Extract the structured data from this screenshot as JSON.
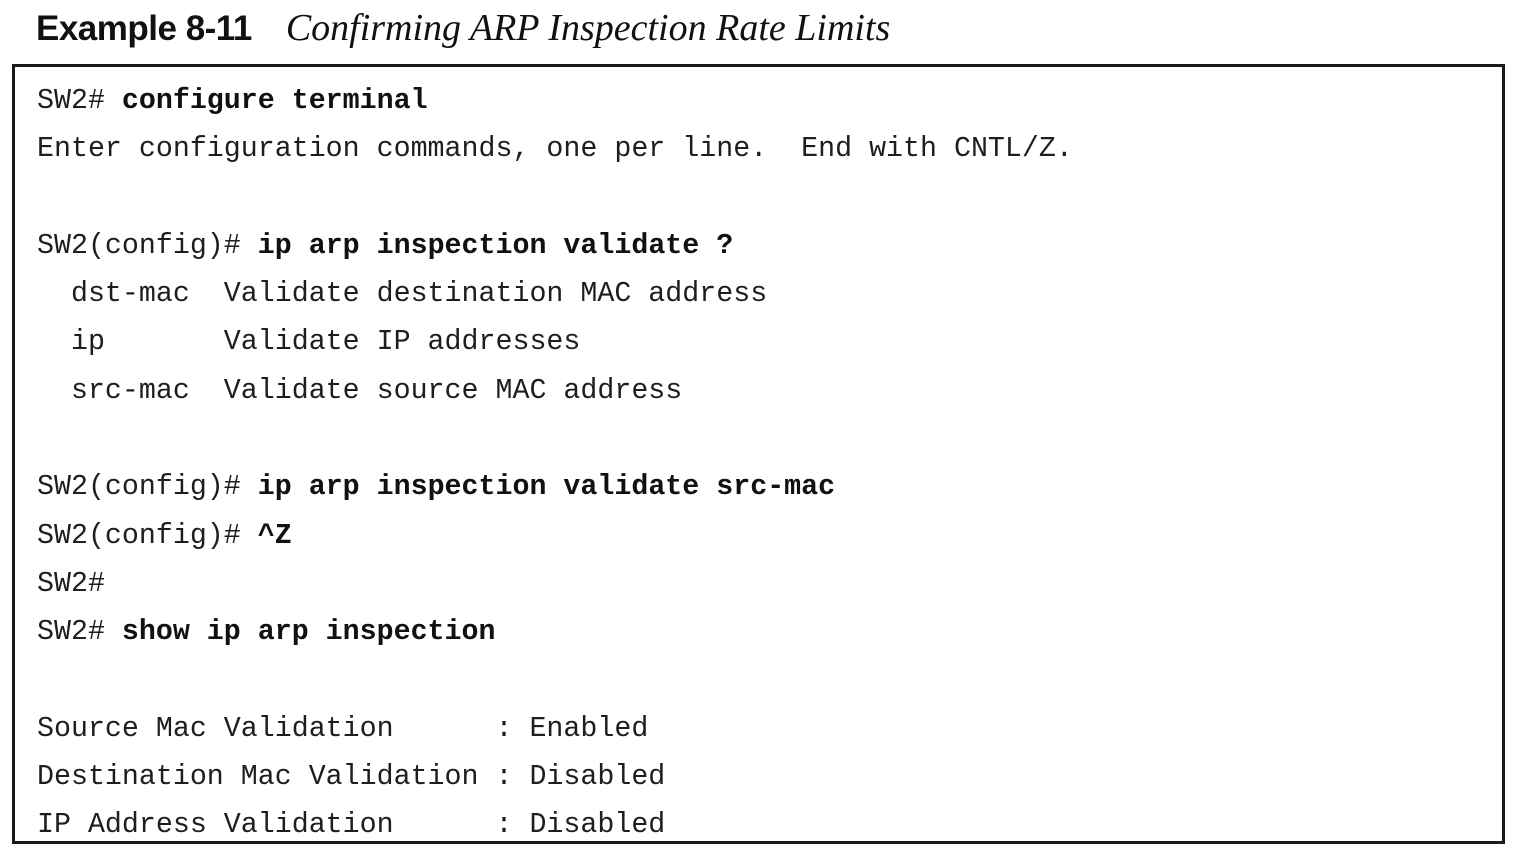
{
  "caption": {
    "example_number": "Example 8-11",
    "title": "Confirming ARP Inspection Rate Limits"
  },
  "terminal": {
    "lines": [
      {
        "prompt": "SW2# ",
        "command": "configure terminal",
        "output": ""
      },
      {
        "prompt": "",
        "command": "",
        "output": "Enter configuration commands, one per line.  End with CNTL/Z."
      },
      {
        "prompt": "",
        "command": "",
        "output": ""
      },
      {
        "prompt": "SW2(config)# ",
        "command": "ip arp inspection validate ?",
        "output": ""
      },
      {
        "prompt": "",
        "command": "",
        "output": "  dst-mac  Validate destination MAC address"
      },
      {
        "prompt": "",
        "command": "",
        "output": "  ip       Validate IP addresses"
      },
      {
        "prompt": "",
        "command": "",
        "output": "  src-mac  Validate source MAC address"
      },
      {
        "prompt": "",
        "command": "",
        "output": ""
      },
      {
        "prompt": "SW2(config)# ",
        "command": "ip arp inspection validate src-mac",
        "output": ""
      },
      {
        "prompt": "SW2(config)# ",
        "command": "^Z",
        "output": ""
      },
      {
        "prompt": "SW2#",
        "command": "",
        "output": ""
      },
      {
        "prompt": "SW2# ",
        "command": "show ip arp inspection",
        "output": ""
      },
      {
        "prompt": "",
        "command": "",
        "output": ""
      },
      {
        "prompt": "",
        "command": "",
        "output": "Source Mac Validation      : Enabled"
      },
      {
        "prompt": "",
        "command": "",
        "output": "Destination Mac Validation : Disabled"
      },
      {
        "prompt": "",
        "command": "",
        "output": "IP Address Validation      : Disabled"
      }
    ]
  }
}
